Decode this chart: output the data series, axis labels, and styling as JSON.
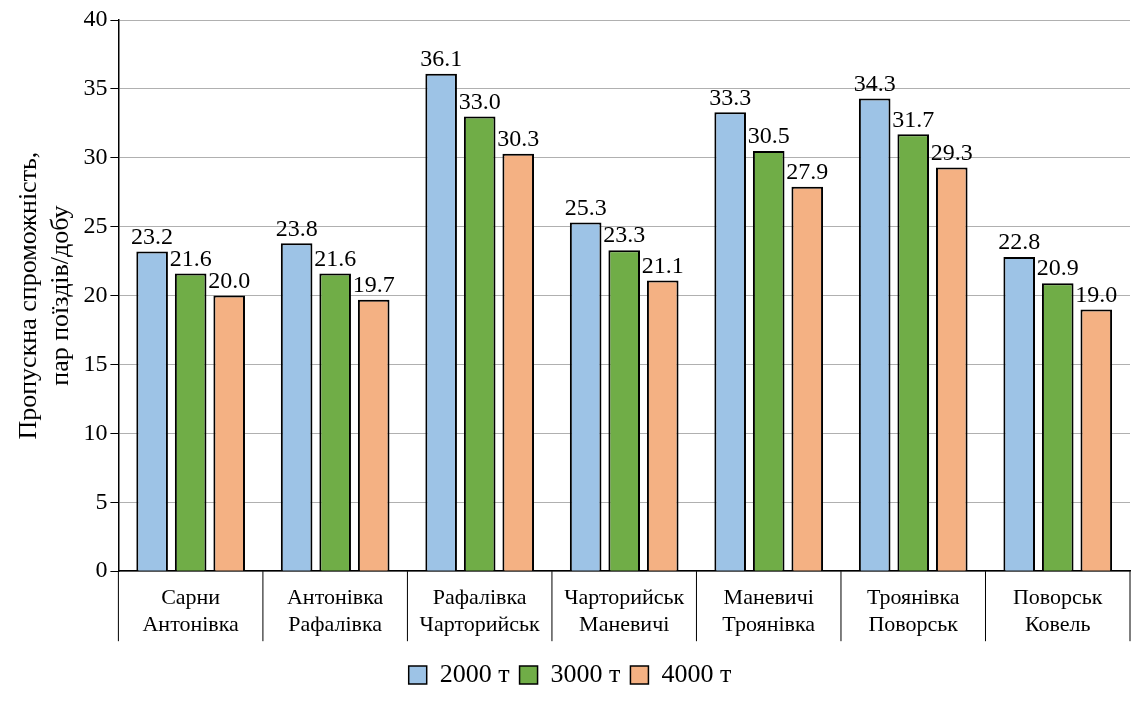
{
  "chart_data": {
    "type": "bar",
    "ylabel": "Пропускна спроможність,\nпар поїздів/добу",
    "categories": [
      "Сарни\nАнтонівка",
      "Антонівка\nРафалівка",
      "Рафалівка\nЧарторийськ",
      "Чарторийськ\nМаневичі",
      "Маневичі\nТроянівка",
      "Троянівка\nПоворськ",
      "Поворськ\nКовель"
    ],
    "series": [
      {
        "name": "2000 т",
        "color": "#9dc3e6",
        "values": [
          23.2,
          23.8,
          36.1,
          25.3,
          33.3,
          34.3,
          22.8
        ],
        "value_labels": [
          "23.2",
          "23.8",
          "36.1",
          "25.3",
          "33.3",
          "34.3",
          "22.8"
        ]
      },
      {
        "name": "3000 т",
        "color": "#70ad47",
        "values": [
          21.6,
          21.6,
          33.0,
          23.3,
          30.5,
          31.7,
          20.9
        ],
        "value_labels": [
          "21.6",
          "21.6",
          "33.0",
          "23.3",
          "30.5",
          "31.7",
          "20.9"
        ]
      },
      {
        "name": "4000 т",
        "color": "#f4b183",
        "values": [
          20.0,
          19.7,
          30.3,
          21.1,
          27.9,
          29.3,
          19.0
        ],
        "value_labels": [
          "20.0",
          "19.7",
          "30.3",
          "21.1",
          "27.9",
          "29.3",
          "19.0"
        ]
      }
    ],
    "ylim": [
      0,
      40
    ],
    "yticks": [
      0,
      5,
      10,
      15,
      20,
      25,
      30,
      35,
      40
    ],
    "grid": "y",
    "legend": "bottom"
  }
}
